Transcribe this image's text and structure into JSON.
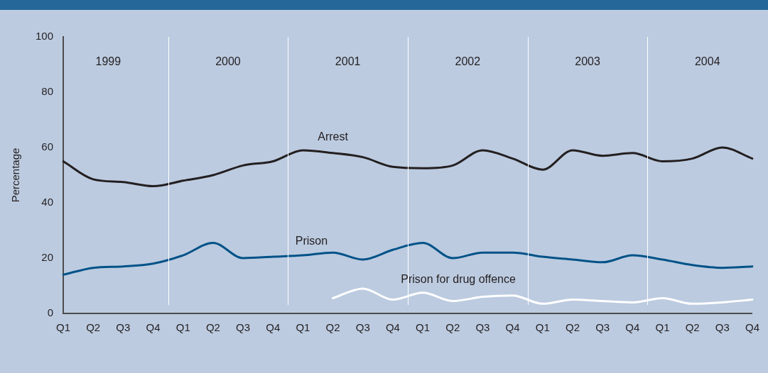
{
  "chart_data": {
    "type": "line",
    "ylabel": "Percentage",
    "categories": [
      "Q1",
      "Q2",
      "Q3",
      "Q4",
      "Q1",
      "Q2",
      "Q3",
      "Q4",
      "Q1",
      "Q2",
      "Q3",
      "Q4",
      "Q1",
      "Q2",
      "Q3",
      "Q4",
      "Q1",
      "Q2",
      "Q3",
      "Q4",
      "Q1",
      "Q2",
      "Q3",
      "Q4"
    ],
    "series": [
      {
        "name": "Arrest",
        "color": "#231f20",
        "values": [
          55,
          48.5,
          47.5,
          46,
          48,
          50,
          53.5,
          55,
          59,
          58,
          56.5,
          53,
          52.5,
          53.5,
          59,
          56,
          52,
          59,
          57,
          58,
          55,
          56,
          60,
          56
        ]
      },
      {
        "name": "Prison",
        "color": "#005288",
        "values": [
          14,
          16.5,
          17,
          18,
          21,
          25.5,
          20,
          20.5,
          21,
          22,
          19.5,
          23,
          25.5,
          20,
          22,
          22,
          20.5,
          19.5,
          18.5,
          21,
          19.5,
          17.5,
          16.5,
          17
        ]
      },
      {
        "name": "Prison for drug offence",
        "color": "#ffffff",
        "values": [
          null,
          null,
          null,
          null,
          null,
          null,
          null,
          null,
          null,
          5.5,
          9,
          5,
          7.5,
          4.5,
          6,
          6.5,
          3.5,
          5,
          4.5,
          4,
          5.5,
          3.5,
          4,
          5
        ]
      }
    ],
    "annotations": [
      "1999",
      "2000",
      "2001",
      "2002",
      "2003",
      "2004"
    ],
    "ylim": [
      0,
      100
    ],
    "yticks": [
      0,
      20,
      40,
      60,
      80,
      100
    ],
    "grid": false,
    "legend": false,
    "marker": "none",
    "line_style": "solid"
  }
}
